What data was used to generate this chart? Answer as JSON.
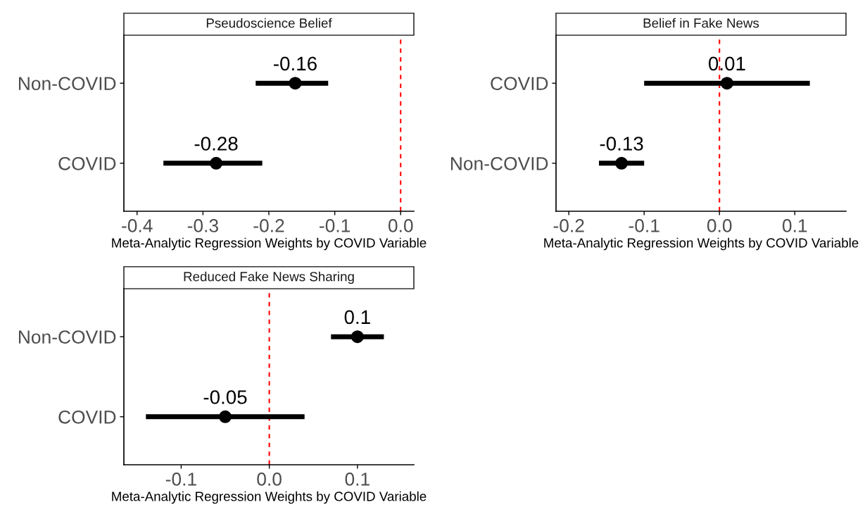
{
  "chart_data": [
    {
      "type": "scatter",
      "orientation": "horizontal",
      "title": "Pseudoscience Belief",
      "xlabel": "Meta-Analytic Regression Weights by COVID Variable",
      "categories": [
        "Non-COVID",
        "COVID"
      ],
      "values": [
        -0.16,
        -0.28
      ],
      "errors": [
        [
          -0.22,
          -0.11
        ],
        [
          -0.36,
          -0.21
        ]
      ],
      "color": "#000000",
      "marker": "circle",
      "data_labels": true,
      "xlim": [
        -0.42,
        0.02
      ],
      "xticks": [
        {
          "value": -0.4,
          "label": "-0.4"
        },
        {
          "value": -0.3,
          "label": "-0.3"
        },
        {
          "value": -0.2,
          "label": "-0.2"
        },
        {
          "value": -0.1,
          "label": "-0.1"
        },
        {
          "value": 0.0,
          "label": "0.0"
        }
      ],
      "ref_lines": [
        {
          "axis": "x",
          "value": 0,
          "color": "#ff0000",
          "line_style": "dashed"
        }
      ]
    },
    {
      "type": "scatter",
      "orientation": "horizontal",
      "title": "Belief in Fake News",
      "xlabel": "Meta-Analytic Regression Weights by COVID Variable",
      "categories": [
        "COVID",
        "Non-COVID"
      ],
      "values": [
        0.01,
        -0.13
      ],
      "errors": [
        [
          -0.1,
          0.12
        ],
        [
          -0.16,
          -0.1
        ]
      ],
      "color": "#000000",
      "marker": "circle",
      "data_labels": true,
      "xlim": [
        -0.217,
        0.168
      ],
      "xticks": [
        {
          "value": -0.2,
          "label": "-0.2"
        },
        {
          "value": -0.1,
          "label": "-0.1"
        },
        {
          "value": 0.0,
          "label": "0.0"
        },
        0.1
      ],
      "ref_lines": [
        {
          "axis": "x",
          "value": 0,
          "color": "#ff0000",
          "line_style": "dashed"
        }
      ]
    },
    {
      "type": "scatter",
      "orientation": "horizontal",
      "title": "Reduced Fake News Sharing",
      "xlabel": "Meta-Analytic Regression Weights by COVID Variable",
      "categories": [
        "Non-COVID",
        "COVID"
      ],
      "values": [
        0.1,
        -0.05
      ],
      "errors": [
        [
          0.07,
          0.13
        ],
        [
          -0.14,
          0.04
        ]
      ],
      "color": "#000000",
      "marker": "circle",
      "data_labels": true,
      "xlim": [
        -0.165,
        0.164
      ],
      "xticks": [
        {
          "value": -0.1,
          "label": "-0.1"
        },
        {
          "value": 0.0,
          "label": "0.0"
        },
        0.1
      ],
      "ref_lines": [
        {
          "axis": "x",
          "value": 0,
          "color": "#ff0000",
          "line_style": "dashed"
        }
      ]
    }
  ]
}
